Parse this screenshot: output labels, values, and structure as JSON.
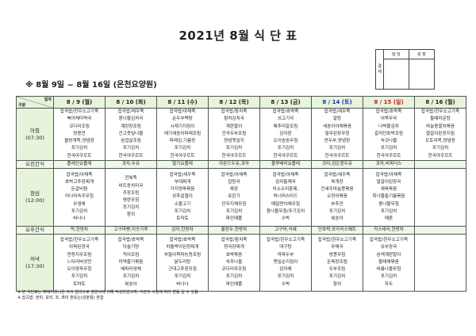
{
  "title": "2021년 8월 식 단 표",
  "approval": {
    "label": "결재",
    "col1": "담 당",
    "col2": "원 장"
  },
  "subtitle": "※ 8월 9일 ~ 8월 16일 (온천요양원)",
  "corner": {
    "top": "일자",
    "bottom": "구분"
  },
  "days": [
    "8 / 9 (월)",
    "8 / 10 (화)",
    "8 / 11 (수)",
    "8 / 12 (목)",
    "8 / 13 (금)",
    "8 / 14 (토)",
    "8 / 15 (일)",
    "8 / 16 (월)"
  ],
  "meals": {
    "breakfast": {
      "label": "아침",
      "time": "(07:30)"
    },
    "am_snack": {
      "label": "오전간식"
    },
    "lunch": {
      "label": "점심",
      "time": "(12:00)"
    },
    "pm_snack": {
      "label": "오후간식"
    },
    "dinner": {
      "label": "저녁",
      "time": "(17:30)"
    }
  },
  "breakfast": [
    [
      "잡곡밥/한우소고기죽",
      "북어채미역국",
      "코다리조림",
      "땅콩전",
      "올방개묵,양념장",
      "포기김치",
      "한국야쿠르트"
    ],
    [
      "잡곡밥/채우죽",
      "콩나물김치국",
      "계란장조림",
      "건고춧잎나물",
      "삼겹살조림",
      "포기김치",
      "한국야쿠르트"
    ],
    [
      "잡곡밥/야채죽",
      "순두부백탕",
      "시래기지짐이",
      "애기새송이파래조림",
      "파래김,기름장",
      "포기김치",
      "한국야쿠르트"
    ],
    [
      "잡곡밥/참치죽",
      "참치김치국",
      "계란말이",
      "건곡두부조림",
      "양념깻잎지",
      "포기김치",
      "한국야쿠르트"
    ],
    [
      "잡곡밥/호박죽",
      "쇠고기국",
      "메추리알조림",
      "김자란",
      "오이송송무침",
      "포기김치",
      "한국야쿠르트"
    ],
    [
      "잡곡밥/새우죽",
      "알탕",
      "새송이야채볶음",
      "얼무된장무침",
      "연두부,양념장",
      "포기김치",
      "한국야쿠르트"
    ],
    [
      "잡곡밥/호박죽",
      "어묵무국",
      "나박물김치",
      "갈치단호박조림",
      "숙갓나물",
      "포기김치",
      "한국야쿠르트"
    ],
    [
      "잡곡밥/한우소고기죽",
      "돌때미운탕",
      "마늘종멸치볶음",
      "열갈이된장지짐",
      "도토리묵,양념장",
      "포기김치",
      "한국야쿠르트"
    ]
  ],
  "am_snack": [
    "플레인요플레",
    "과자,두유",
    "딸기요플레",
    "아몬드두유,과자",
    "블루베리요플레",
    "과자,검은콩두유",
    "과자,비피더스",
    ""
  ],
  "lunch": [
    [
      "잡곡밥/야채죽",
      "호박고추장찌개",
      "돈갈비찜",
      "미나리숙주무침",
      "무생채",
      "포기김치",
      "바나나"
    ],
    [
      "전복죽",
      "비트동치미국",
      "주장조림",
      "명란무침",
      "포기김치",
      "참외"
    ],
    [
      "잡곡밥/새우죽",
      "부대찌개",
      "가지양파볶음",
      "상추겉절이",
      "소불고기",
      "포기김치",
      "토마토"
    ],
    [
      "잡곡밥/야채죽",
      "잡탕국",
      "짜장",
      "유린기",
      "단무지채무침",
      "포기김치",
      "파인애플"
    ],
    [
      "잡곡밥/야채죽",
      "감자들깨국",
      "미소오리훈제,",
      "허니머스타드",
      "메밀면야채무침",
      "참나물무침/포기김치",
      "수박"
    ],
    [
      "잡곡밥/새우죽",
      "육개장",
      "건새우마늘쫑볶음",
      "오징어볶음",
      "부추전",
      "포기김치",
      "복숭아"
    ],
    [
      "잡곡밥/야채죽",
      "얼갈이된장국",
      "제육볶음",
      "취나물들기름볶음",
      "콩나물무침",
      "포기김치",
      "메론"
    ],
    []
  ],
  "pm_snack": [
    "떡,한방차",
    "고구마빵,미숫가루",
    "감자,한방차",
    "율란두,한방차",
    "고구마,식혜",
    "단호박,포카리스웨트",
    "카스테라,한방차",
    ""
  ],
  "dinner": [
    [
      "잡곡밥/한우소고기죽",
      "아욱된장국",
      "연동지무조림",
      "느타리버섯전",
      "오이양파무침",
      "포기김치",
      "토마토"
    ],
    [
      "잡곡밥/호박죽",
      "다슬기탕",
      "적어조림",
      "미역줄기볶음",
      "해파리냉채",
      "포기김치",
      "복숭아"
    ],
    [
      "잡곡밥/호박죽",
      "차돌박이된장찌개",
      "부들어묵파농동조림",
      "닭도리탕",
      "근대고추장무침",
      "포기김치",
      "바나나"
    ],
    [
      "잡곡밥/참치죽",
      "청국장찌개",
      "호박볶음",
      "숙주나물",
      "코다리무조림",
      "포기김치",
      "파인애플"
    ],
    [
      "잡곡밥/한우소고기죽",
      "대구탕",
      "마파두부",
      "깻잎순지짐이",
      "감자채",
      "포기김치",
      "수박"
    ],
    [
      "잡곡밥/한우소고기죽",
      "무채국",
      "방풍무침",
      "돈육장조림",
      "두부조림",
      "포기김치",
      "참외"
    ],
    [
      "잡곡밥/한우소고기죽",
      "유부장국",
      "삼색계란말이",
      "황태채볶음",
      "비름나물무침",
      "포기김치",
      "자두"
    ],
    []
  ],
  "notes": [
    "※ 본 식단표는 ㈜복지유니온 과의 협의으로 영양사에 의해 작성되었으며, 기관의 사정에 따라 변동 될 수 있음",
    "※ 잡곡밥: 현미, 보리, 조, 흑미 혼또는(성분용) 혼합"
  ],
  "colors": {
    "header_bg": "#e6f4dc",
    "saturday": "#2233bb",
    "sunday": "#cc2222"
  }
}
